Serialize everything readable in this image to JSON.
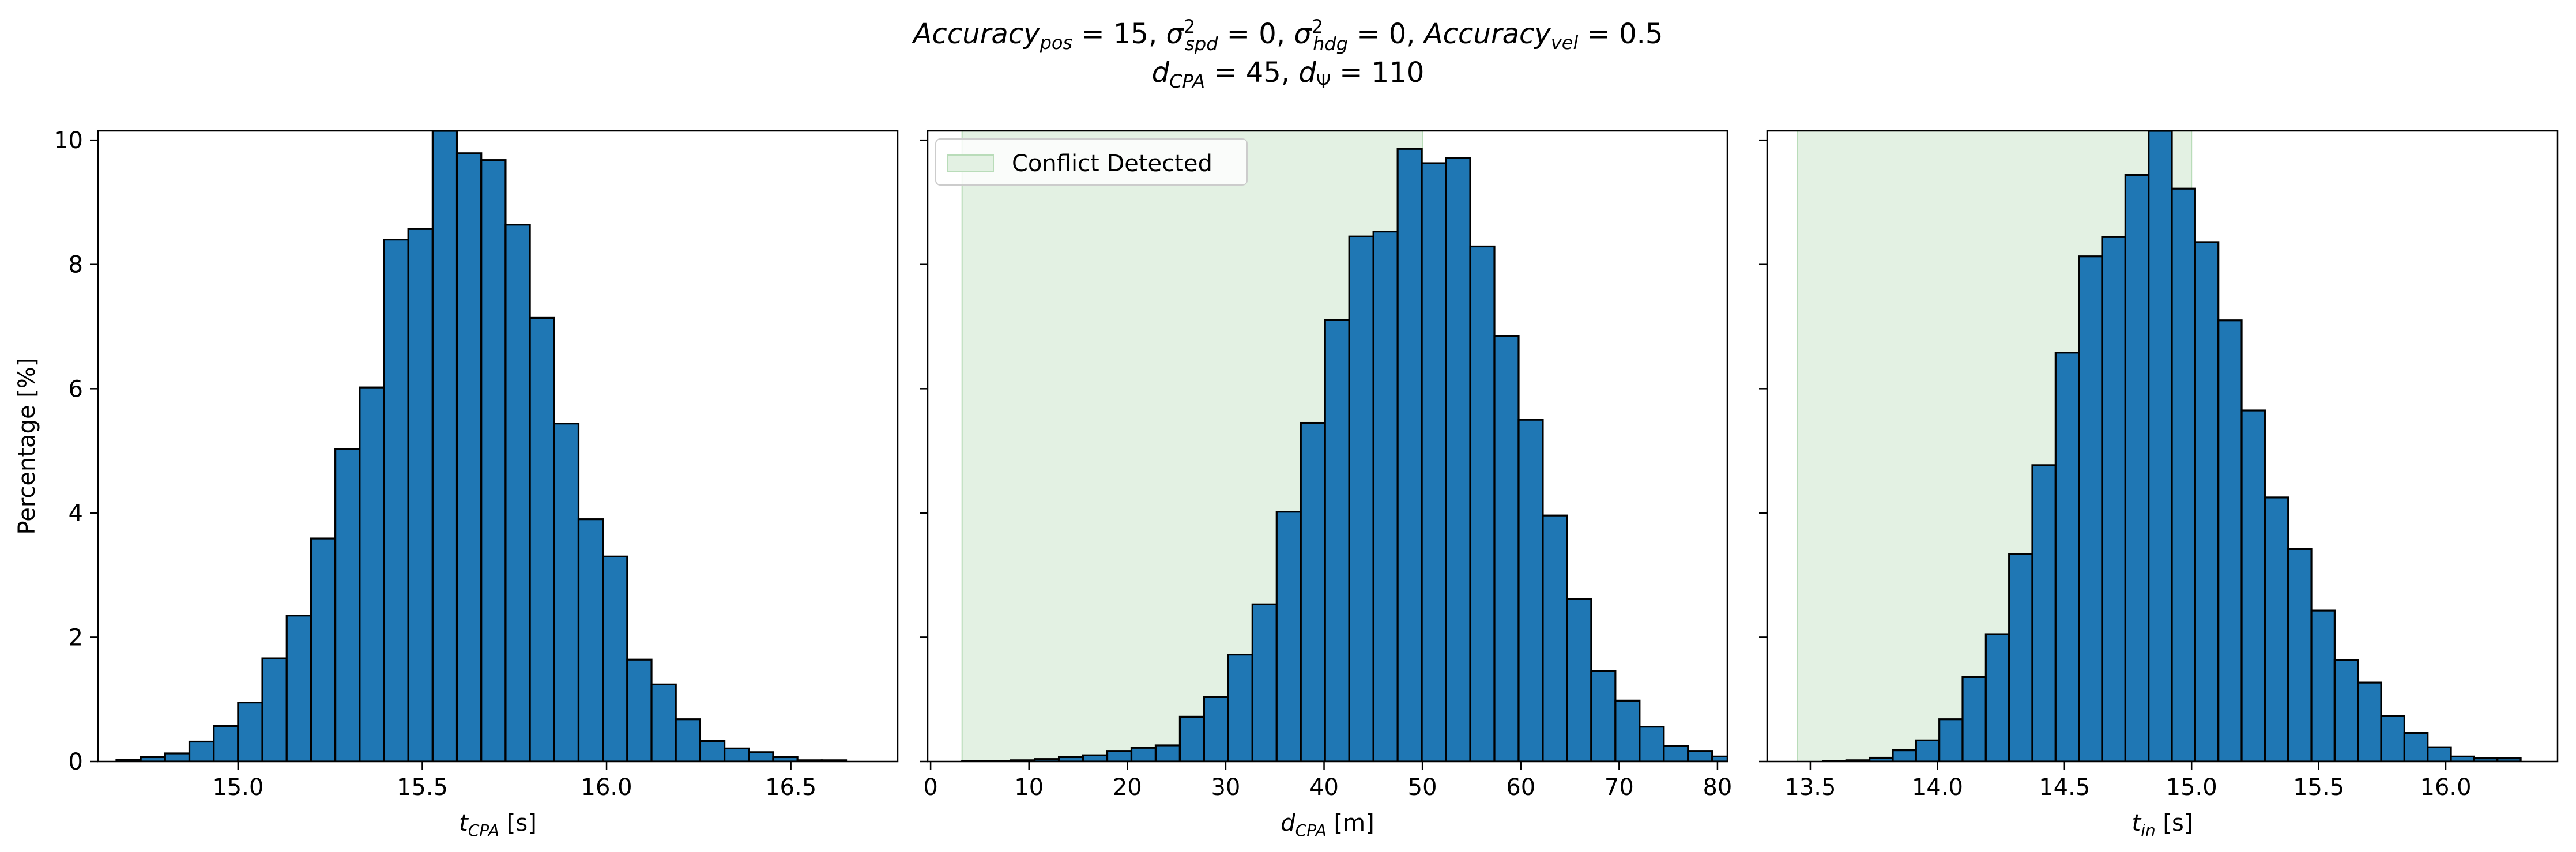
{
  "figure": {
    "title_line1": "Accuracy_pos = 15, σ²_spd = 0, σ²_hdg = 0, Accuracy_vel = 0.5",
    "title_line2": "d_CPA = 45, d_Ψ = 110"
  },
  "colors": {
    "bar_fill": "#1f77b4",
    "bar_edge": "#000000",
    "conflict_fill": "#e3f1e3",
    "conflict_edge": "#b9dcb9"
  },
  "chart_data": [
    {
      "type": "bar",
      "title": "",
      "xlabel": "t_CPA [s]",
      "xlabel_main": "t",
      "xlabel_sub": "CPA",
      "xlabel_unit": " [s]",
      "ylabel": "Percentage [%]",
      "xlim": [
        14.62,
        16.79
      ],
      "ylim": [
        0,
        10.15
      ],
      "xticks": [
        15.0,
        15.5,
        16.0,
        16.5
      ],
      "xtick_labels": [
        "15.0",
        "15.5",
        "16.0",
        "16.5"
      ],
      "yticks": [
        0,
        2,
        4,
        6,
        8,
        10
      ],
      "ytick_labels": [
        "0",
        "2",
        "4",
        "6",
        "8",
        "10"
      ],
      "bin_start": 14.67,
      "bin_width": 0.066,
      "values": [
        0.03,
        0.07,
        0.13,
        0.32,
        0.57,
        0.95,
        1.66,
        2.35,
        3.59,
        5.03,
        6.02,
        8.4,
        8.57,
        10.15,
        9.79,
        9.68,
        8.64,
        7.14,
        5.44,
        3.9,
        3.3,
        1.64,
        1.24,
        0.68,
        0.33,
        0.21,
        0.15,
        0.07,
        0.02,
        0.02
      ],
      "conflict": null,
      "legend": null
    },
    {
      "type": "bar",
      "title": "",
      "xlabel": "d_CPA [m]",
      "xlabel_main": "d",
      "xlabel_sub": "CPA",
      "xlabel_unit": " [m]",
      "ylabel": "",
      "xlim": [
        -0.3,
        81.0
      ],
      "ylim": [
        0,
        10.15
      ],
      "xticks": [
        0,
        10,
        20,
        30,
        40,
        50,
        60,
        70,
        80
      ],
      "xtick_labels": [
        "0",
        "10",
        "20",
        "30",
        "40",
        "50",
        "60",
        "70",
        "80"
      ],
      "yticks": [
        0,
        2,
        4,
        6,
        8,
        10
      ],
      "ytick_labels": [
        "",
        "",
        "",
        "",
        "",
        ""
      ],
      "bin_start": 3.2,
      "bin_width": 2.46,
      "values": [
        0.01,
        0.01,
        0.02,
        0.04,
        0.07,
        0.1,
        0.17,
        0.22,
        0.26,
        0.72,
        1.04,
        1.72,
        2.53,
        4.02,
        5.45,
        7.11,
        8.45,
        8.53,
        9.86,
        9.63,
        9.71,
        8.29,
        6.85,
        5.5,
        3.96,
        2.62,
        1.46,
        0.98,
        0.56,
        0.25,
        0.17,
        0.08
      ],
      "conflict": {
        "x0": 3.2,
        "x1": 50.0
      },
      "legend": {
        "label": "Conflict Detected",
        "position": "top-left"
      }
    },
    {
      "type": "bar",
      "title": "",
      "xlabel": "t_in [s]",
      "xlabel_main": "t",
      "xlabel_sub": "in",
      "xlabel_unit": " [s]",
      "ylabel": "",
      "xlim": [
        13.33,
        16.44
      ],
      "ylim": [
        0,
        10.15
      ],
      "xticks": [
        13.5,
        14.0,
        14.5,
        15.0,
        15.5,
        16.0
      ],
      "xtick_labels": [
        "13.5",
        "14.0",
        "14.5",
        "15.0",
        "15.5",
        "16.0"
      ],
      "yticks": [
        0,
        2,
        4,
        6,
        8,
        10
      ],
      "ytick_labels": [
        "",
        "",
        "",
        "",
        "",
        ""
      ],
      "bin_start": 13.55,
      "bin_width": 0.0915,
      "values": [
        0.01,
        0.02,
        0.06,
        0.18,
        0.34,
        0.68,
        1.36,
        2.05,
        3.34,
        4.77,
        6.58,
        8.13,
        8.44,
        9.44,
        10.15,
        9.22,
        8.36,
        7.1,
        5.65,
        4.25,
        3.42,
        2.43,
        1.63,
        1.27,
        0.73,
        0.46,
        0.23,
        0.08,
        0.05,
        0.05
      ],
      "conflict": {
        "x0": 13.45,
        "x1": 15.0
      },
      "legend": null
    }
  ]
}
